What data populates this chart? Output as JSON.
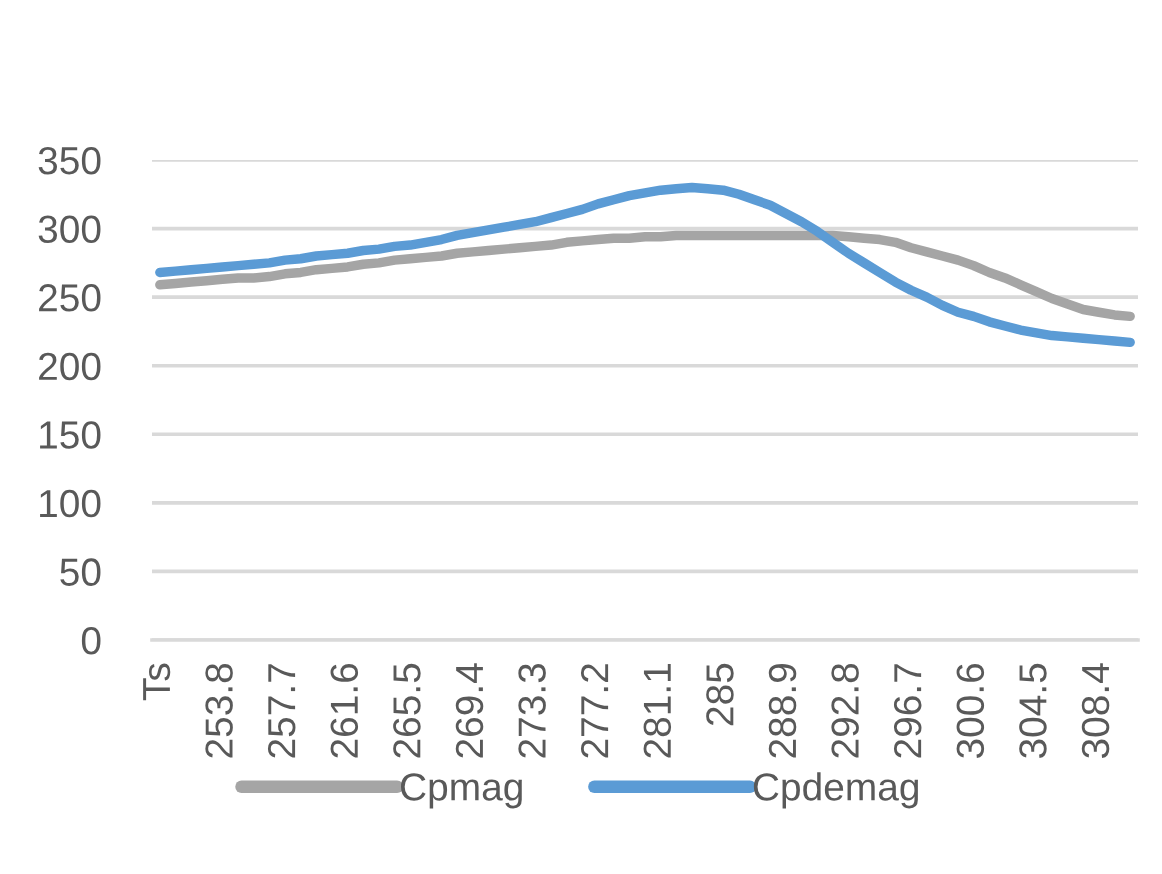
{
  "chart_data": {
    "type": "line",
    "categories": [
      "Ts",
      null,
      null,
      null,
      "253.8",
      null,
      null,
      null,
      "257.7",
      null,
      null,
      null,
      "261.6",
      null,
      null,
      null,
      "265.5",
      null,
      null,
      null,
      "269.4",
      null,
      null,
      null,
      "273.3",
      null,
      null,
      null,
      "277.2",
      null,
      null,
      null,
      "281.1",
      null,
      null,
      null,
      "285",
      null,
      null,
      null,
      "288.9",
      null,
      null,
      null,
      "292.8",
      null,
      null,
      null,
      "296.7",
      null,
      null,
      null,
      "300.6",
      null,
      null,
      null,
      "304.5",
      null,
      null,
      null,
      "308.4",
      null,
      null
    ],
    "series": [
      {
        "name": "Cpmag",
        "color": "#a5a5a5",
        "values": [
          259,
          260,
          261,
          262,
          263,
          264,
          264,
          265,
          267,
          268,
          270,
          271,
          272,
          274,
          275,
          277,
          278,
          279,
          280,
          282,
          283,
          284,
          285,
          286,
          287,
          288,
          290,
          291,
          292,
          293,
          293,
          294,
          294,
          295,
          295,
          295,
          295,
          295,
          295,
          295,
          295,
          295,
          295,
          295,
          294,
          293,
          292,
          290,
          286,
          283,
          280,
          277,
          273,
          268,
          264,
          259,
          254,
          249,
          245,
          241,
          239,
          237,
          236
        ]
      },
      {
        "name": "Cpdemag",
        "color": "#5b9bd5",
        "values": [
          268,
          269,
          270,
          271,
          272,
          273,
          274,
          275,
          277,
          278,
          280,
          281,
          282,
          284,
          285,
          287,
          288,
          290,
          292,
          295,
          297,
          299,
          301,
          303,
          305,
          308,
          311,
          314,
          318,
          321,
          324,
          326,
          328,
          329,
          330,
          329,
          328,
          325,
          321,
          317,
          311,
          305,
          298,
          290,
          282,
          275,
          268,
          261,
          255,
          250,
          244,
          239,
          236,
          232,
          229,
          226,
          224,
          222,
          221,
          220,
          219,
          218,
          217
        ]
      }
    ],
    "ylim": [
      0,
      350
    ],
    "yticks": [
      0,
      50,
      100,
      150,
      200,
      250,
      300,
      350
    ],
    "grid": "y",
    "legend": "bottom",
    "line_style": "solid"
  }
}
